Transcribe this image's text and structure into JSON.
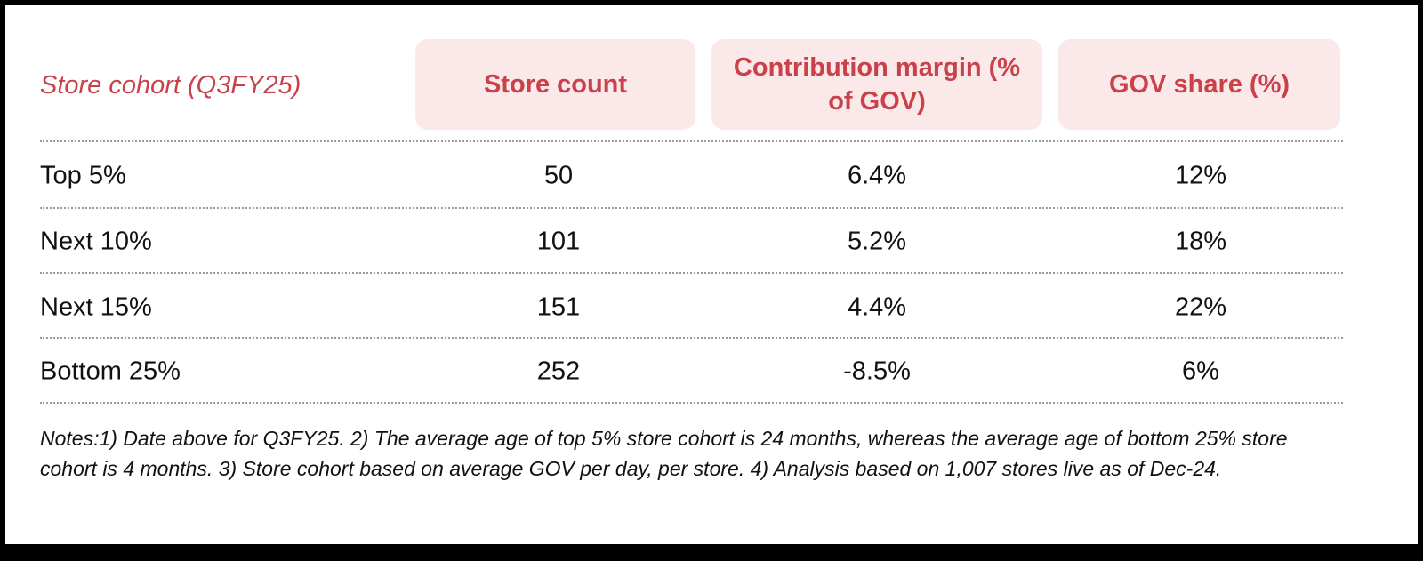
{
  "table": {
    "row_header_label": "Store cohort (Q3FY25)",
    "columns": [
      "Store count",
      "Contribution margin (% of GOV)",
      "GOV share (%)"
    ],
    "rows": [
      {
        "cohort": "Top 5%",
        "store_count": "50",
        "contribution_margin": "6.4%",
        "gov_share": "12%"
      },
      {
        "cohort": "Next 10%",
        "store_count": "101",
        "contribution_margin": "5.2%",
        "gov_share": "18%"
      },
      {
        "cohort": "Next 15%",
        "store_count": "151",
        "contribution_margin": "4.4%",
        "gov_share": "22%"
      },
      {
        "cohort": "Bottom 25%",
        "store_count": "252",
        "contribution_margin": "-8.5%",
        "gov_share": "6%"
      }
    ]
  },
  "notes": "Notes:1) Date above for Q3FY25. 2) The average age of top 5% store cohort is 24 months, whereas the average age of bottom 25% store cohort is 4 months. 3) Store cohort based on average GOV per day, per store. 4) Analysis based on 1,007 stores live as of Dec-24.",
  "colors": {
    "accent": "#c9414a",
    "header_bg": "#fbe8e8"
  }
}
